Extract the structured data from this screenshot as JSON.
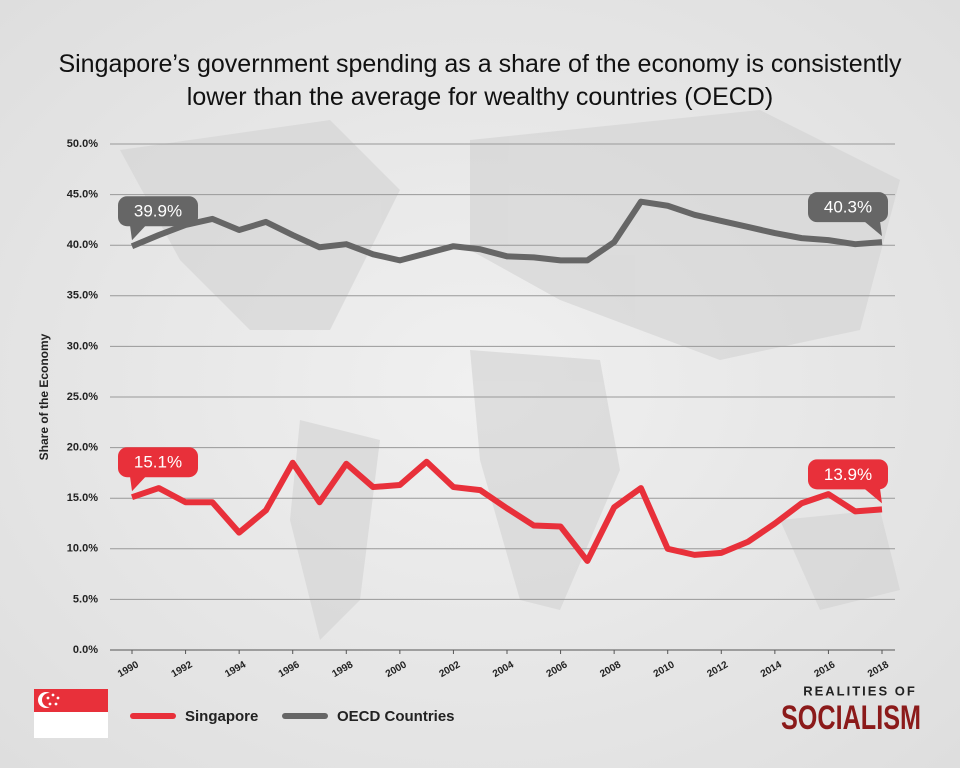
{
  "chart_data": {
    "type": "line",
    "title": "Singapore’s government spending as a share of the economy is consistently lower than the average for wealthy countries (OECD)",
    "y_label": "Share of the Economy",
    "x": [
      1990,
      1991,
      1992,
      1993,
      1994,
      1995,
      1996,
      1997,
      1998,
      1999,
      2000,
      2001,
      2002,
      2003,
      2004,
      2005,
      2006,
      2007,
      2008,
      2009,
      2010,
      2011,
      2012,
      2013,
      2014,
      2015,
      2016,
      2017,
      2018
    ],
    "xlim": [
      1990,
      2018
    ],
    "xticks": [
      1990,
      1992,
      1994,
      1996,
      1998,
      2000,
      2002,
      2004,
      2006,
      2008,
      2010,
      2012,
      2014,
      2016,
      2018
    ],
    "ylim": [
      0,
      50
    ],
    "yticks": [
      {
        "value": 0,
        "label": "0.0%"
      },
      {
        "value": 5,
        "label": "5.0%"
      },
      {
        "value": 10,
        "label": "10.0%"
      },
      {
        "value": 15,
        "label": "15.0%"
      },
      {
        "value": 20,
        "label": "20.0%"
      },
      {
        "value": 25,
        "label": "25.0%"
      },
      {
        "value": 30,
        "label": "30.0%"
      },
      {
        "value": 35,
        "label": "35.0%"
      },
      {
        "value": 40,
        "label": "40.0%"
      },
      {
        "value": 45,
        "label": "45.0%"
      },
      {
        "value": 50,
        "label": "50.0%"
      }
    ],
    "grid": true,
    "series": [
      {
        "name": "Singapore",
        "color": "#e8303a",
        "values": [
          15.1,
          16.0,
          14.6,
          14.6,
          11.6,
          13.8,
          18.5,
          14.6,
          18.4,
          16.1,
          16.3,
          18.6,
          16.1,
          15.8,
          14.0,
          12.3,
          12.2,
          8.8,
          14.1,
          16.0,
          10.0,
          9.4,
          9.6,
          10.7,
          12.5,
          14.5,
          15.4,
          13.7,
          13.9
        ],
        "value_labels": [
          "15.1%",
          null,
          null,
          null,
          null,
          null,
          null,
          null,
          null,
          null,
          null,
          null,
          null,
          null,
          null,
          null,
          null,
          null,
          null,
          null,
          null,
          null,
          null,
          null,
          null,
          null,
          null,
          null,
          "13.9%"
        ]
      },
      {
        "name": "OECD Countries",
        "color": "#666666",
        "values": [
          39.9,
          41.0,
          42.0,
          42.6,
          41.5,
          42.3,
          41.0,
          39.8,
          40.1,
          39.1,
          38.5,
          39.2,
          39.9,
          39.6,
          38.9,
          38.8,
          38.5,
          38.5,
          40.3,
          44.3,
          43.9,
          43.0,
          42.4,
          41.8,
          41.2,
          40.7,
          40.5,
          40.1,
          40.3
        ],
        "value_labels": [
          "39.9%",
          null,
          null,
          null,
          null,
          null,
          null,
          null,
          null,
          null,
          null,
          null,
          null,
          null,
          null,
          null,
          null,
          null,
          null,
          null,
          null,
          null,
          null,
          null,
          null,
          null,
          null,
          null,
          "40.3%"
        ]
      }
    ]
  },
  "brand": {
    "top": "REALITIES OF",
    "bottom": "SOCIALISM"
  }
}
